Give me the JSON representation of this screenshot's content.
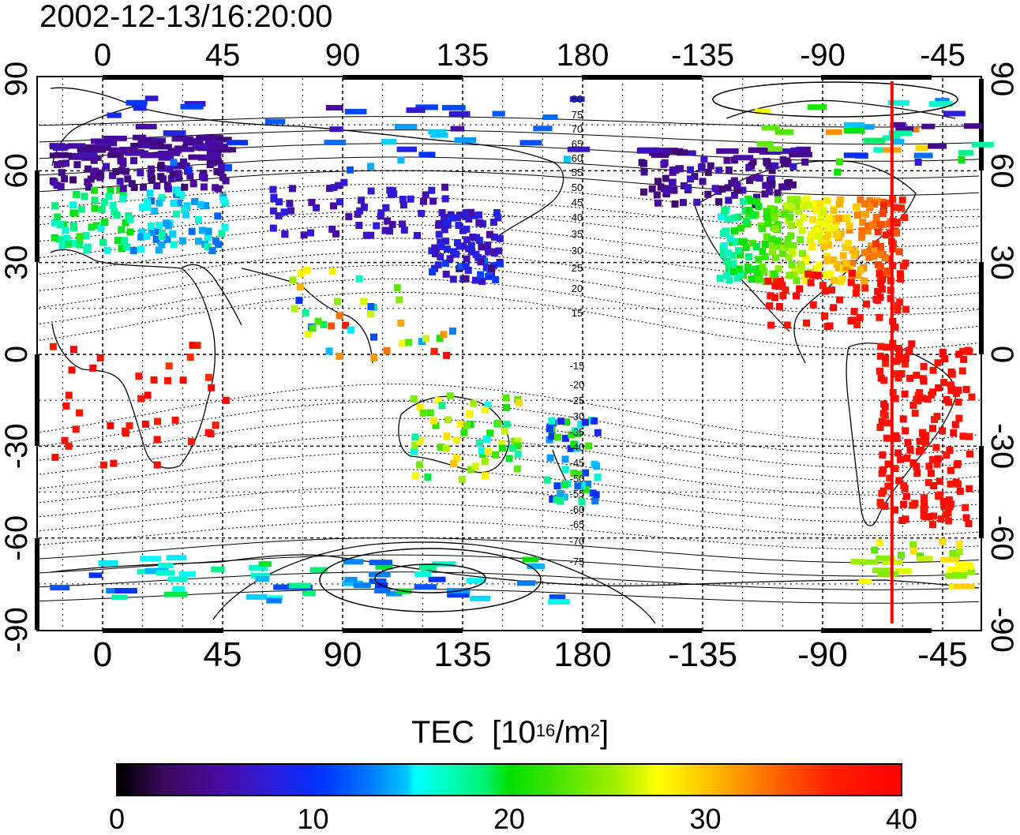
{
  "timestamp": "2002-12-13/16:20:00",
  "colorbar": {
    "title_main": "TEC",
    "title_unit_open": "[10",
    "title_exp1": "16",
    "title_mid": "/m",
    "title_exp2": "2",
    "title_close": "]",
    "ticks": [
      "0",
      "10",
      "20",
      "30",
      "40"
    ],
    "range": [
      0,
      40
    ]
  },
  "map": {
    "top_lon_labels": [
      "0",
      "45",
      "90",
      "135",
      "180",
      "-135",
      "-90",
      "-45"
    ],
    "bottom_lon_labels": [
      "0",
      "45",
      "90",
      "135",
      "180",
      "-135",
      "-90",
      "-45"
    ],
    "left_lat_labels": [
      "90",
      "60",
      "30",
      "0",
      "-30",
      "-60",
      "-90"
    ],
    "right_lat_labels": [
      "90",
      "60",
      "30",
      "0",
      "-30",
      "-60",
      "-90"
    ],
    "lat_ticks": [
      90,
      60,
      30,
      0,
      -30,
      -60,
      -90
    ],
    "lon_ticks": [
      0,
      45,
      90,
      135,
      180,
      -135,
      -90,
      -45
    ],
    "mlat_labels_north": [
      "80",
      "75",
      "70",
      "65",
      "60",
      "55",
      "50",
      "45",
      "40",
      "35",
      "30",
      "25",
      "20",
      "15"
    ],
    "mlat_labels_south": [
      "-15",
      "-20",
      "-25",
      "-30",
      "-35",
      "-40",
      "-45",
      "-50",
      "-55",
      "-60",
      "-65",
      "-70",
      "-75"
    ],
    "terminator_color": "#ff0000",
    "terminator_lon": -64
  }
}
